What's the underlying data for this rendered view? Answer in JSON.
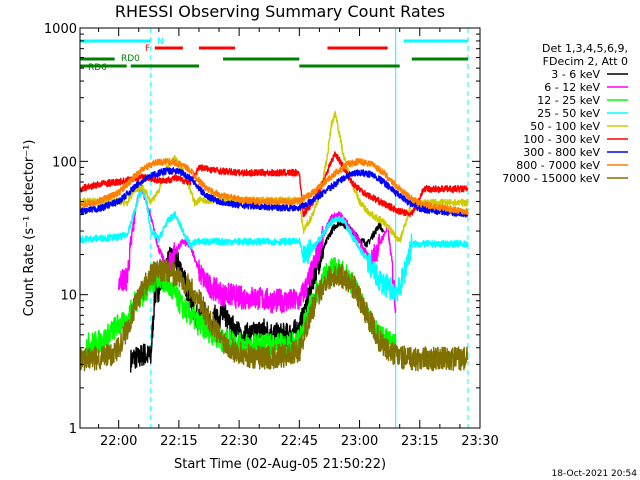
{
  "chart_data": {
    "type": "line",
    "title": "RHESSI Observing Summary Count Rates",
    "xlabel": "Start Time (02-Aug-05 21:50:22)",
    "ylabel": "Count Rate (s⁻¹ detector⁻¹)",
    "y_scale": "log",
    "ylim": [
      1,
      1000
    ],
    "xlim": [
      "21:50:22",
      "23:30:00"
    ],
    "x_ticks": [
      "22:00",
      "22:15",
      "22:30",
      "22:45",
      "23:00",
      "23:15",
      "23:30"
    ],
    "y_ticks": [
      "1",
      "10",
      "100",
      "1000"
    ],
    "legend_header": [
      "Det 1,3,4,5,6,9,",
      "FDecim 2, Att 0"
    ],
    "legend_placement": "right",
    "timestamp": "18-Oct-2021 20:54",
    "flags": [
      {
        "label": "N",
        "color": "#00ffff",
        "segments": [
          [
            "21:50:22",
            "22:08"
          ],
          [
            "23:11",
            "23:27"
          ]
        ]
      },
      {
        "label": "F",
        "color": "#ff0000",
        "segments": [
          [
            "22:09",
            "22:16"
          ],
          [
            "22:20",
            "22:29"
          ],
          [
            "22:52",
            "23:07"
          ]
        ]
      },
      {
        "label": "RD0",
        "color": "#008000",
        "segments": [
          [
            "21:50:22",
            "21:59"
          ],
          [
            "22:26",
            "22:45"
          ],
          [
            "23:13",
            "23:27"
          ]
        ]
      },
      {
        "label": "RD6",
        "color": "#008000",
        "segments": [
          [
            "21:50:22",
            "22:02"
          ],
          [
            "22:03",
            "22:20"
          ],
          [
            "22:45",
            "23:10"
          ]
        ]
      }
    ],
    "vlines": [
      {
        "x": "21:50:22",
        "color": "#00ffff",
        "style": "solid"
      },
      {
        "x": "22:08",
        "color": "#00ffff",
        "style": "dashed"
      },
      {
        "x": "23:09",
        "color": "#00ffff",
        "style": "solid"
      },
      {
        "x": "23:27",
        "color": "#00ffff",
        "style": "dashed"
      }
    ],
    "series": [
      {
        "name": "3 - 6 keV",
        "color": "#000000",
        "x": [
          "22:02",
          "22:03",
          "22:04",
          "22:05",
          "22:06",
          "22:07",
          "22:08",
          "22:09",
          "22:10",
          "22:11",
          "22:12",
          "22:13",
          "22:14",
          "22:15",
          "22:16",
          "22:17",
          "22:18",
          "22:19",
          "22:20",
          "22:21",
          "22:22",
          "22:23",
          "22:24",
          "22:25",
          "22:26",
          "22:27",
          "22:28",
          "22:29",
          "22:30",
          "22:33",
          "22:36",
          "22:39",
          "22:42",
          "22:45",
          "22:46",
          "22:47",
          "22:48",
          "22:49",
          "22:50",
          "22:51",
          "22:52",
          "22:53",
          "22:54",
          "22:55",
          "22:56",
          "22:57",
          "22:58",
          "22:59",
          "23:00",
          "23:01",
          "23:02",
          "23:03",
          "23:04",
          "23:05",
          "23:06",
          "23:07",
          "23:08"
        ],
        "y": [
          null,
          3.2,
          3.4,
          3.3,
          3.6,
          3.5,
          3.4,
          10,
          11,
          14,
          17,
          19,
          18,
          17,
          14,
          11,
          8.5,
          7,
          6.5,
          7.5,
          6.5,
          5.5,
          7,
          6,
          8,
          6.5,
          5.5,
          6,
          5,
          5,
          5.5,
          5,
          5,
          5.5,
          7,
          9,
          12,
          15,
          18,
          22,
          26,
          30,
          33,
          35,
          34,
          32,
          30,
          28,
          26,
          25,
          24,
          27,
          30,
          34,
          28,
          null,
          null
        ]
      },
      {
        "name": "6 - 12 keV",
        "color": "#ff00ff",
        "x": [
          "22:00",
          "22:02",
          "22:04",
          "22:05",
          "22:06",
          "22:08",
          "22:10",
          "22:12",
          "22:14",
          "22:16",
          "22:18",
          "22:20",
          "22:22",
          "22:24",
          "22:26",
          "22:28",
          "22:30",
          "22:34",
          "22:38",
          "22:42",
          "22:45",
          "22:47",
          "22:49",
          "22:51",
          "22:53",
          "22:55",
          "22:57",
          "22:59",
          "23:01",
          "23:03",
          "23:05",
          "23:07",
          "23:08",
          "23:09"
        ],
        "y": [
          13,
          13,
          40,
          58,
          60,
          38,
          22,
          16,
          21,
          25,
          23,
          15,
          12,
          11,
          10,
          10,
          9.5,
          9.5,
          9,
          9,
          9,
          12,
          18,
          28,
          38,
          40,
          34,
          28,
          22,
          18,
          24,
          32,
          18,
          8
        ]
      },
      {
        "name": "12 - 25 keV",
        "color": "#00ff00",
        "x": [
          "21:52",
          "21:56",
          "22:00",
          "22:02",
          "22:04",
          "22:06",
          "22:08",
          "22:10",
          "22:12",
          "22:14",
          "22:16",
          "22:18",
          "22:20",
          "22:22",
          "22:24",
          "22:26",
          "22:28",
          "22:30",
          "22:33",
          "22:36",
          "22:39",
          "22:42",
          "22:45",
          "22:47",
          "22:49",
          "22:51",
          "22:53",
          "22:55",
          "22:57",
          "22:59",
          "23:01",
          "23:03",
          "23:05",
          "23:07",
          "23:09"
        ],
        "y": [
          4.2,
          4.5,
          6,
          6,
          9,
          10,
          12,
          14,
          12,
          10,
          8,
          7,
          6,
          5.5,
          5,
          4.5,
          4.5,
          4.2,
          4.2,
          4.2,
          4.2,
          4.2,
          4.5,
          7,
          10,
          13,
          16,
          15,
          14,
          11,
          8,
          6,
          5,
          4.5,
          4.2
        ]
      },
      {
        "name": "25 - 50 keV",
        "color": "#00ffff",
        "x": [
          "21:50:22",
          "22:00",
          "22:02",
          "22:04",
          "22:05",
          "22:06",
          "22:07",
          "22:08",
          "22:10",
          "22:12",
          "22:14",
          "22:16",
          "22:18",
          "22:19",
          "22:20",
          "22:25",
          "22:30",
          "22:35",
          "22:40",
          "22:45",
          "22:46",
          "22:48",
          "22:50",
          "22:52",
          "22:54",
          "22:56",
          "22:58",
          "23:00",
          "23:02",
          "23:04",
          "23:06",
          "23:08",
          "23:10",
          "23:13",
          "23:16",
          "23:20",
          "23:24",
          "23:27"
        ],
        "y": [
          26,
          27,
          28,
          42,
          55,
          62,
          48,
          30,
          26,
          35,
          40,
          30,
          23,
          25,
          25,
          25,
          25,
          25,
          25,
          25,
          19,
          22,
          26,
          32,
          38,
          36,
          28,
          22,
          18,
          14,
          12,
          11,
          11,
          24,
          24,
          24,
          24,
          24
        ]
      },
      {
        "name": "50 - 100 keV",
        "color": "#cccc00",
        "x": [
          "21:50:22",
          "21:55",
          "22:00",
          "22:02",
          "22:04",
          "22:06",
          "22:08",
          "22:10",
          "22:12",
          "22:14",
          "22:16",
          "22:18",
          "22:19",
          "22:20",
          "22:25",
          "22:30",
          "22:35",
          "22:40",
          "22:45",
          "22:46",
          "22:48",
          "22:50",
          "22:52",
          "22:53",
          "22:54",
          "22:55",
          "22:56",
          "22:58",
          "23:00",
          "23:02",
          "23:04",
          "23:06",
          "23:08",
          "23:10",
          "23:13",
          "23:16",
          "23:20",
          "23:24",
          "23:27"
        ],
        "y": [
          50,
          50,
          50,
          48,
          62,
          64,
          50,
          60,
          90,
          105,
          85,
          60,
          48,
          51,
          51,
          51,
          51,
          51,
          51,
          30,
          38,
          55,
          110,
          190,
          230,
          160,
          110,
          70,
          50,
          42,
          38,
          35,
          30,
          25,
          49,
          49,
          49,
          49,
          49
        ]
      },
      {
        "name": "100 - 300 keV",
        "color": "#ff0000",
        "x": [
          "21:50:22",
          "21:53",
          "21:56",
          "22:00",
          "22:02",
          "22:04",
          "22:06",
          "22:08",
          "22:10",
          "22:12",
          "22:14",
          "22:16",
          "22:18",
          "22:20",
          "22:25",
          "22:30",
          "22:35",
          "22:40",
          "22:45",
          "22:46",
          "22:48",
          "22:50",
          "22:52",
          "22:53",
          "22:54",
          "22:56",
          "22:58",
          "23:00",
          "23:02",
          "23:04",
          "23:06",
          "23:08",
          "23:10",
          "23:13",
          "23:16",
          "23:20",
          "23:24",
          "23:27"
        ],
        "y": [
          62,
          65,
          68,
          70,
          72,
          75,
          76,
          74,
          72,
          72,
          75,
          72,
          70,
          90,
          85,
          82,
          82,
          82,
          82,
          40,
          48,
          60,
          85,
          100,
          115,
          90,
          70,
          62,
          56,
          52,
          48,
          45,
          42,
          40,
          62,
          62,
          62,
          62
        ]
      },
      {
        "name": "300 - 800 keV",
        "color": "#0000ff",
        "x": [
          "21:50:22",
          "21:55",
          "22:00",
          "22:03",
          "22:06",
          "22:09",
          "22:12",
          "22:15",
          "22:18",
          "22:20",
          "22:22",
          "22:25",
          "22:30",
          "22:35",
          "22:40",
          "22:45",
          "22:48",
          "22:51",
          "22:54",
          "22:57",
          "23:00",
          "23:03",
          "23:06",
          "23:09",
          "23:12",
          "23:15",
          "23:20",
          "23:27"
        ],
        "y": [
          42,
          44,
          50,
          60,
          72,
          80,
          85,
          84,
          75,
          62,
          55,
          50,
          47,
          46,
          45,
          45,
          50,
          58,
          68,
          78,
          82,
          80,
          70,
          58,
          50,
          44,
          42,
          40
        ]
      },
      {
        "name": "800 - 7000 keV",
        "color": "#ff8000",
        "x": [
          "21:50:22",
          "21:55",
          "22:00",
          "22:03",
          "22:06",
          "22:09",
          "22:12",
          "22:15",
          "22:18",
          "22:20",
          "22:22",
          "22:25",
          "22:30",
          "22:35",
          "22:40",
          "22:45",
          "22:48",
          "22:51",
          "22:54",
          "22:57",
          "23:00",
          "23:03",
          "23:06",
          "23:09",
          "23:12",
          "23:15",
          "23:20",
          "23:27"
        ],
        "y": [
          47,
          50,
          58,
          72,
          88,
          97,
          100,
          96,
          85,
          72,
          62,
          56,
          52,
          50,
          50,
          50,
          57,
          68,
          82,
          95,
          100,
          96,
          82,
          66,
          55,
          48,
          45,
          42
        ]
      },
      {
        "name": "7000 - 15000 keV",
        "color": "#807000",
        "x": [
          "21:50:22",
          "21:54",
          "21:58",
          "22:00",
          "22:02",
          "22:04",
          "22:06",
          "22:08",
          "22:10",
          "22:12",
          "22:14",
          "22:16",
          "22:18",
          "22:20",
          "22:22",
          "22:24",
          "22:26",
          "22:28",
          "22:30",
          "22:34",
          "22:38",
          "22:42",
          "22:45",
          "22:47",
          "22:49",
          "22:51",
          "22:53",
          "22:55",
          "22:57",
          "22:59",
          "23:01",
          "23:03",
          "23:05",
          "23:07",
          "23:09",
          "23:12",
          "23:16",
          "23:20",
          "23:24",
          "23:27"
        ],
        "y": [
          3.3,
          3.3,
          3.5,
          4,
          5.5,
          8,
          11,
          14,
          15,
          15,
          14,
          13,
          11,
          9,
          7,
          5.5,
          4.5,
          4,
          3.6,
          3.4,
          3.4,
          3.5,
          3.8,
          6,
          9,
          12,
          14,
          14,
          13,
          11,
          8,
          6,
          4.5,
          3.8,
          3.5,
          3.3,
          3.3,
          3.3,
          3.3,
          3.3
        ]
      }
    ]
  }
}
